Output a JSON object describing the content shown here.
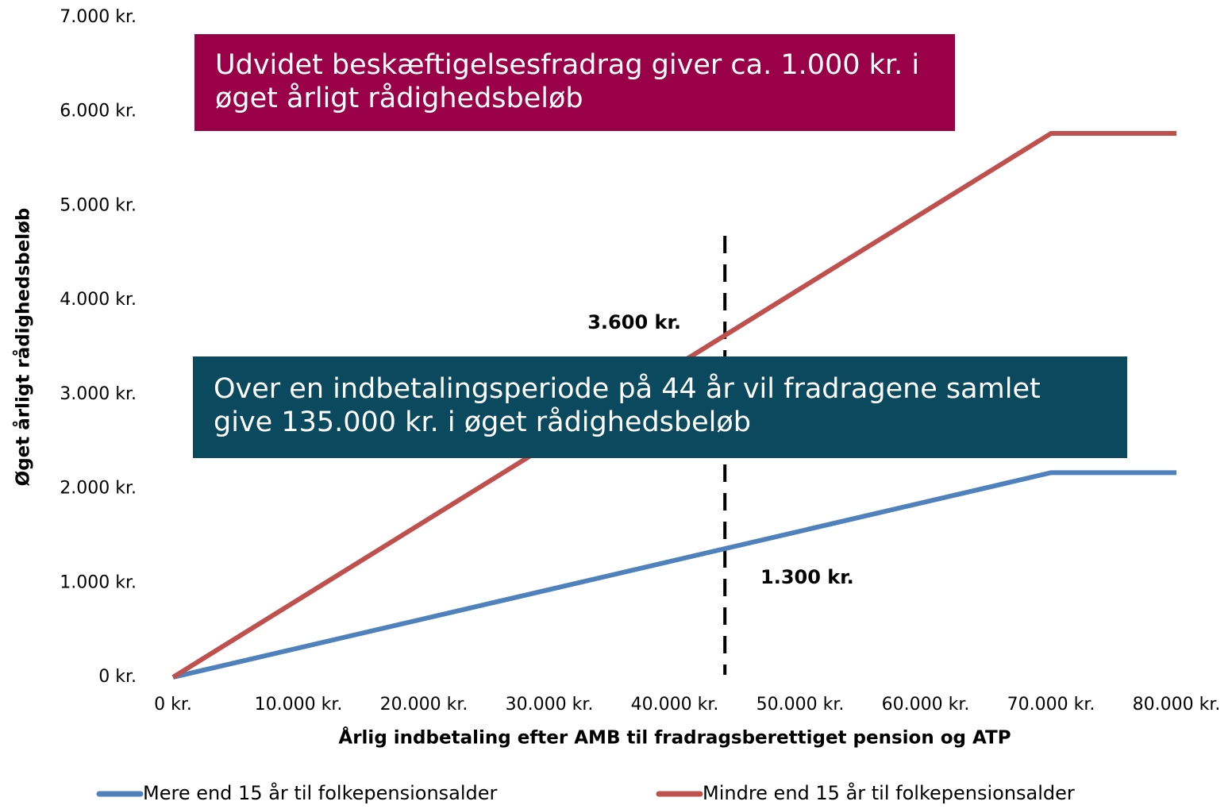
{
  "chart_data": {
    "type": "line",
    "x_label": "Årlig indbetaling efter AMB til fradragsberettiget pension og ATP",
    "y_label": "Øget årligt rådighedsbeløb",
    "x": [
      0,
      70000,
      80000
    ],
    "series": [
      {
        "name": "Mere end 15 år til folkepensionsalder",
        "color": "#4f81bd",
        "values": [
          0,
          2170,
          2170
        ]
      },
      {
        "name": "Mindre end 15 år til folkepensionsalder",
        "color": "#c0504d",
        "values": [
          0,
          5770,
          5770
        ]
      }
    ],
    "xlim": [
      0,
      80000
    ],
    "xticks": [
      {
        "value": 0,
        "label": "0 kr."
      },
      {
        "value": 10000,
        "label": "10.000 kr."
      },
      {
        "value": 20000,
        "label": "20.000 kr."
      },
      {
        "value": 30000,
        "label": "30.000 kr."
      },
      {
        "value": 40000,
        "label": "40.000 kr."
      },
      {
        "value": 50000,
        "label": "50.000 kr."
      },
      {
        "value": 60000,
        "label": "60.000 kr."
      },
      {
        "value": 70000,
        "label": "70.000 kr."
      },
      {
        "value": 80000,
        "label": "80.000 kr."
      }
    ],
    "ylim": [
      0,
      7000
    ],
    "yticks": [
      {
        "value": 0,
        "label": "0 kr."
      },
      {
        "value": 1000,
        "label": "1.000 kr."
      },
      {
        "value": 2000,
        "label": "2.000 kr."
      },
      {
        "value": 3000,
        "label": "3.000 kr."
      },
      {
        "value": 4000,
        "label": "4.000 kr."
      },
      {
        "value": 5000,
        "label": "5.000 kr."
      },
      {
        "value": 6000,
        "label": "6.000 kr."
      },
      {
        "value": 7000,
        "label": "7.000 kr."
      }
    ],
    "reference_line_x": 44000,
    "annotations": [
      "3.600 kr.",
      "1.300 kr."
    ],
    "boxes": [
      {
        "text": "Udvidet beskæftigelsesfradrag giver ca. 1.000 kr. i øget årligt rådighedsbeløb",
        "color": "#990047"
      },
      {
        "text": "Over en indbetalingsperiode på 44 år vil fradragene samlet give 135.000 kr. i øget rådighedsbeløb",
        "color": "#0b4a5e"
      }
    ],
    "legend": "bottom",
    "grid": false
  }
}
